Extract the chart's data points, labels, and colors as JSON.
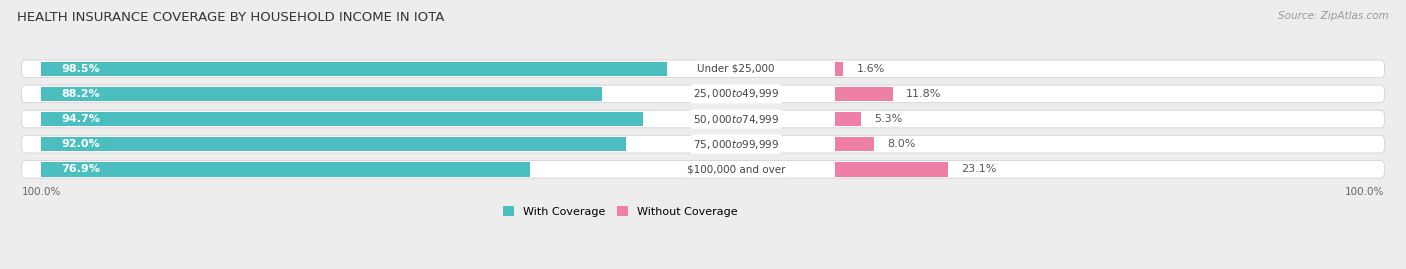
{
  "title": "HEALTH INSURANCE COVERAGE BY HOUSEHOLD INCOME IN IOTA",
  "source": "Source: ZipAtlas.com",
  "categories": [
    "Under $25,000",
    "$25,000 to $49,999",
    "$50,000 to $74,999",
    "$75,000 to $99,999",
    "$100,000 and over"
  ],
  "with_coverage": [
    98.5,
    88.2,
    94.7,
    92.0,
    76.9
  ],
  "without_coverage": [
    1.6,
    11.8,
    5.3,
    8.0,
    23.1
  ],
  "color_with": "#4bbfbf",
  "color_without": "#f07fa8",
  "bar_height": 0.58,
  "title_fontsize": 9.5,
  "label_fontsize": 8,
  "legend_fontsize": 8,
  "source_fontsize": 7.5,
  "background_color": "#ededee",
  "bar_background": "#ffffff",
  "bar_gap": 0.12
}
